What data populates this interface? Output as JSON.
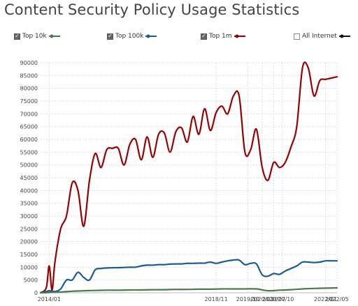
{
  "title": "Content Security Policy Usage Statistics",
  "legend": [
    {
      "label": "Top 10k",
      "checked": true,
      "color": "#4a7a4a"
    },
    {
      "label": "Top 100k",
      "checked": true,
      "color": "#1a5a9a"
    },
    {
      "label": "Top 1m",
      "checked": true,
      "color": "#990000"
    },
    {
      "label": "All Internet",
      "checked": false,
      "color": "#111111"
    }
  ],
  "chart_data": {
    "type": "line",
    "title": "Content Security Policy Usage Statistics",
    "xlabel": "",
    "ylabel": "",
    "ylim": [
      0,
      90000
    ],
    "yticks": [
      0,
      5000,
      10000,
      15000,
      20000,
      25000,
      30000,
      35000,
      40000,
      45000,
      50000,
      55000,
      60000,
      65000,
      70000,
      75000,
      80000,
      85000,
      90000
    ],
    "xlim": [
      "2013-10",
      "2022-05"
    ],
    "xticks": [
      {
        "label": "2014/01",
        "x": "2014-01"
      },
      {
        "label": "2018/11",
        "x": "2018-11"
      },
      {
        "label": "2019/10",
        "x": "2019-10"
      },
      {
        "label": "2020/03",
        "x": "2020-03"
      },
      {
        "label": "2020/07",
        "x": "2020-07"
      },
      {
        "label": "2020/10",
        "x": "2020-10"
      },
      {
        "label": "2022/01",
        "x": "2022-01"
      },
      {
        "label": "2022/05",
        "x": "2022-05"
      }
    ],
    "grid": true,
    "legend_position": "top",
    "series": [
      {
        "name": "Top 1m",
        "color": "#990000",
        "x": [
          "2013-10",
          "2013-12",
          "2014-01",
          "2014-02",
          "2014-03",
          "2014-05",
          "2014-07",
          "2014-09",
          "2014-11",
          "2015-01",
          "2015-03",
          "2015-05",
          "2015-07",
          "2015-09",
          "2015-11",
          "2016-01",
          "2016-03",
          "2016-05",
          "2016-07",
          "2016-09",
          "2016-11",
          "2017-01",
          "2017-03",
          "2017-05",
          "2017-07",
          "2017-09",
          "2017-11",
          "2018-01",
          "2018-03",
          "2018-05",
          "2018-07",
          "2018-09",
          "2018-11",
          "2019-01",
          "2019-03",
          "2019-05",
          "2019-07",
          "2019-09",
          "2019-11",
          "2020-01",
          "2020-03",
          "2020-05",
          "2020-07",
          "2020-09",
          "2020-11",
          "2021-01",
          "2021-03",
          "2021-05",
          "2021-07",
          "2021-09",
          "2021-11",
          "2022-01",
          "2022-03",
          "2022-05"
        ],
        "values": [
          0,
          2000,
          10500,
          1000,
          12000,
          25000,
          30000,
          43000,
          40000,
          26000,
          44000,
          54500,
          49000,
          56000,
          56500,
          56500,
          50000,
          58000,
          60000,
          52000,
          61000,
          53000,
          62000,
          62500,
          55000,
          63000,
          64500,
          59000,
          69000,
          62000,
          72000,
          63500,
          70500,
          73000,
          70000,
          77000,
          77000,
          55000,
          56000,
          64000,
          49000,
          44000,
          51000,
          49000,
          51000,
          57000,
          65000,
          88000,
          88000,
          77000,
          83000,
          83500,
          84000,
          84500
        ]
      },
      {
        "name": "Top 100k",
        "color": "#1a5a9a",
        "x": [
          "2013-10",
          "2013-12",
          "2014-01",
          "2014-03",
          "2014-05",
          "2014-07",
          "2014-09",
          "2014-11",
          "2015-01",
          "2015-03",
          "2015-05",
          "2015-07",
          "2015-09",
          "2015-11",
          "2016-01",
          "2016-03",
          "2016-05",
          "2016-07",
          "2016-09",
          "2016-11",
          "2017-01",
          "2017-03",
          "2017-05",
          "2017-07",
          "2017-09",
          "2017-11",
          "2018-01",
          "2018-03",
          "2018-05",
          "2018-07",
          "2018-09",
          "2018-11",
          "2019-01",
          "2019-03",
          "2019-05",
          "2019-07",
          "2019-09",
          "2019-11",
          "2020-01",
          "2020-03",
          "2020-05",
          "2020-07",
          "2020-09",
          "2020-11",
          "2021-01",
          "2021-03",
          "2021-05",
          "2021-07",
          "2021-09",
          "2021-11",
          "2022-01",
          "2022-03",
          "2022-05"
        ],
        "values": [
          0,
          500,
          800,
          500,
          1500,
          5000,
          5000,
          8000,
          6000,
          5000,
          9000,
          9500,
          9700,
          9800,
          9800,
          9900,
          10000,
          10000,
          10500,
          10800,
          10800,
          11000,
          11000,
          11200,
          11300,
          11300,
          11500,
          11500,
          11600,
          11600,
          12000,
          11500,
          12000,
          12500,
          12800,
          12800,
          11000,
          11500,
          11300,
          7000,
          6500,
          7500,
          7200,
          8500,
          9500,
          10500,
          12000,
          12000,
          11800,
          12000,
          12500,
          12500,
          12500
        ]
      },
      {
        "name": "Top 10k",
        "color": "#4a7a4a",
        "x": [
          "2013-10",
          "2014-01",
          "2014-05",
          "2014-09",
          "2015-01",
          "2015-05",
          "2015-09",
          "2016-01",
          "2016-05",
          "2016-09",
          "2017-01",
          "2017-05",
          "2017-09",
          "2018-01",
          "2018-05",
          "2018-09",
          "2019-01",
          "2019-05",
          "2019-09",
          "2020-01",
          "2020-05",
          "2020-09",
          "2021-01",
          "2021-05",
          "2021-09",
          "2022-01",
          "2022-05"
        ],
        "values": [
          0,
          100,
          300,
          600,
          800,
          900,
          1000,
          1000,
          1100,
          1100,
          1200,
          1200,
          1300,
          1300,
          1400,
          1400,
          1500,
          1500,
          1500,
          1500,
          800,
          1000,
          1200,
          1500,
          1700,
          1800,
          1900
        ]
      },
      {
        "name": "All Internet",
        "color": "#111111",
        "x": [],
        "values": []
      }
    ]
  }
}
